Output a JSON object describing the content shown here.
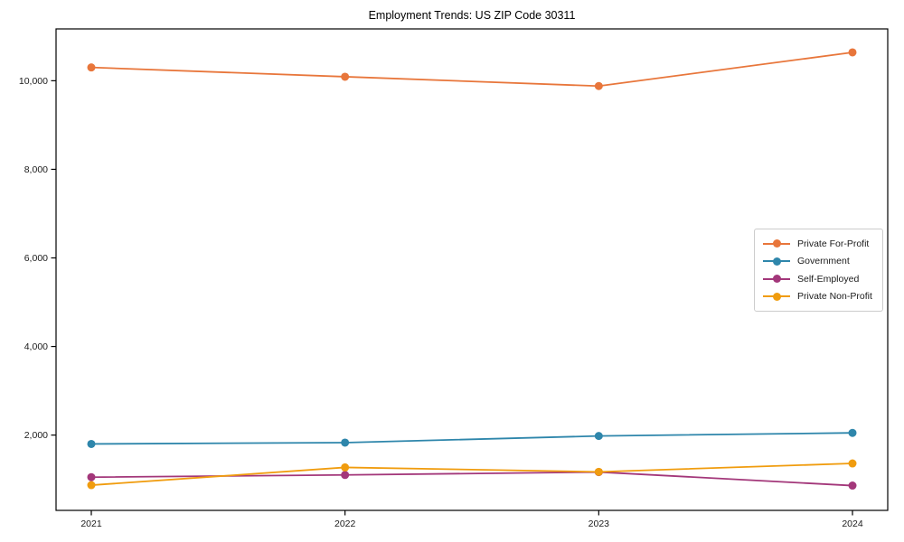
{
  "figure": {
    "title": "Employment Trends: US ZIP Code 30311"
  },
  "chart_data": {
    "type": "line",
    "title": "Employment Trends: US ZIP Code 30311",
    "xlabel": "",
    "ylabel": "",
    "x": [
      2021,
      2022,
      2023,
      2024
    ],
    "x_tick_labels": [
      "2021",
      "2022",
      "2023",
      "2024"
    ],
    "y_ticks": [
      2000,
      4000,
      6000,
      8000,
      10000
    ],
    "y_tick_labels": [
      "2,000",
      "4,000",
      "6,000",
      "8,000",
      "10,000"
    ],
    "ylim": [
      300,
      11170
    ],
    "grid": false,
    "legend_position": "center-right",
    "marker": "circle",
    "series": [
      {
        "name": "Private For-Profit",
        "color": "#E8763B",
        "values": [
          10300,
          10090,
          9880,
          10640
        ]
      },
      {
        "name": "Government",
        "color": "#2E86AB",
        "values": [
          1800,
          1830,
          1980,
          2050
        ]
      },
      {
        "name": "Self-Employed",
        "color": "#A3377A",
        "values": [
          1050,
          1100,
          1165,
          860
        ]
      },
      {
        "name": "Private Non-Profit",
        "color": "#F09C0E",
        "values": [
          870,
          1270,
          1170,
          1360
        ]
      }
    ],
    "axis_color": "#000000",
    "tick_label_color": "#1a1a1a"
  }
}
